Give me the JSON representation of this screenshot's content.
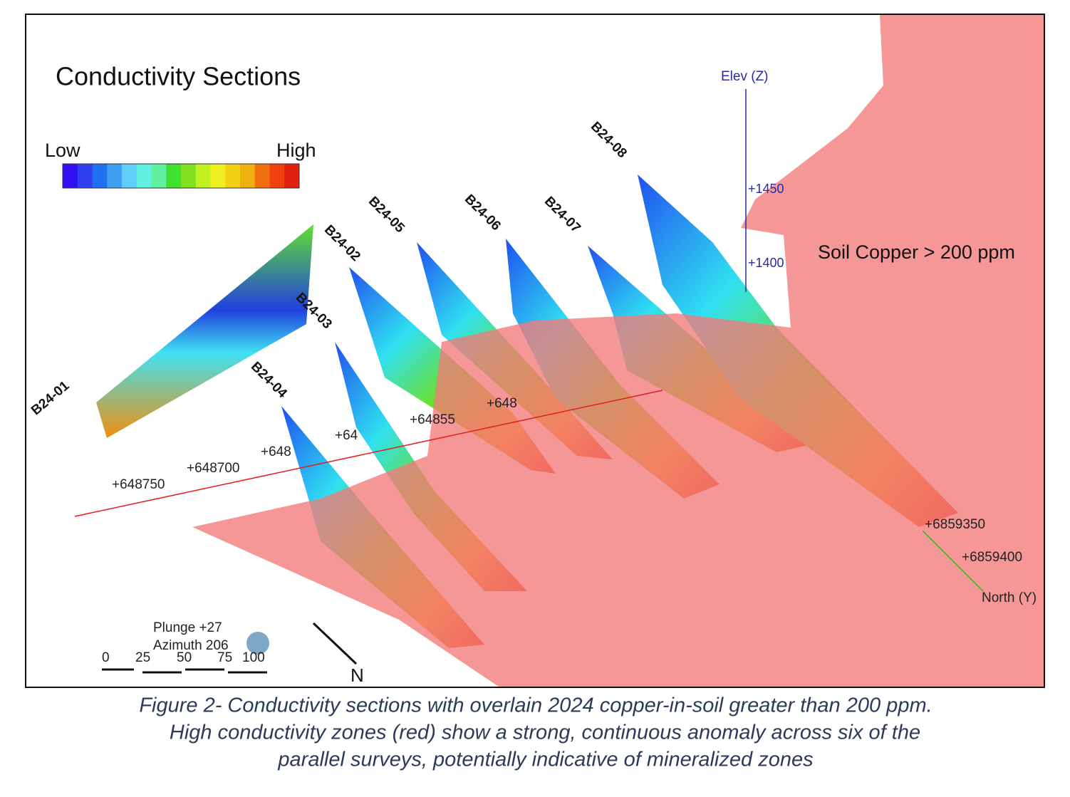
{
  "figure": {
    "title": "Conductivity Sections",
    "legend": {
      "low": "Low",
      "high": "High"
    },
    "sections": [
      "B24-01",
      "B24-02",
      "B24-03",
      "B24-04",
      "B24-05",
      "B24-06",
      "B24-07",
      "B24-08"
    ],
    "elevation_axis": {
      "label": "Elev (Z)",
      "ticks": [
        "+1450",
        "+1400"
      ]
    },
    "easting_labels": [
      "+648750",
      "+648700",
      "+648",
      "+64",
      "+64855",
      "+648"
    ],
    "northing_axis": {
      "label": "North (Y)",
      "ticks": [
        "+6859350",
        "+6859400"
      ]
    },
    "soil_label": "Soil Copper > 200 ppm",
    "view": {
      "plunge": "Plunge +27",
      "azimuth": "Azimuth 206"
    },
    "scale_bar": [
      "0",
      "25",
      "50",
      "75",
      "100"
    ],
    "north_arrow": "N"
  },
  "caption": [
    "Figure 2- Conductivity sections with overlain 2024 copper-in-soil greater than 200 ppm.",
    "High conductivity zones (red) show a strong, continuous anomaly across six of the",
    "parallel surveys, potentially indicative of mineralized zones"
  ]
}
